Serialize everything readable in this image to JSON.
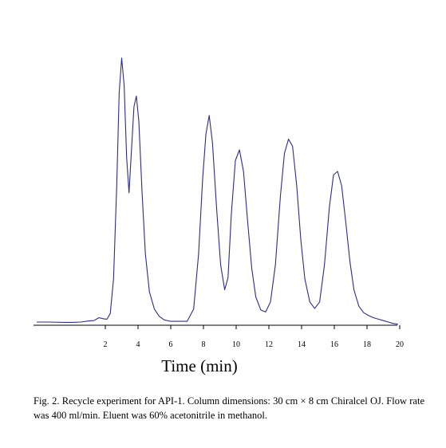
{
  "chart_data": {
    "type": "line",
    "xlabel": "Time (min)",
    "ylabel": "",
    "xlim": [
      -2.2,
      20.4
    ],
    "x_ticks": [
      2,
      4,
      6,
      8,
      10,
      12,
      14,
      16,
      18,
      20
    ],
    "y_ticks_shown": false,
    "grid": false,
    "series": [
      {
        "x": [
          -2.2,
          -1.5,
          -0.5,
          0.0,
          0.5,
          1.0,
          1.3,
          1.6,
          1.9,
          2.1,
          2.3,
          2.5,
          2.7,
          2.85,
          3.0,
          3.15,
          3.3,
          3.45,
          3.6,
          3.75,
          3.9,
          4.05,
          4.25,
          4.45,
          4.7,
          5.0,
          5.3,
          5.6,
          6.0,
          6.5,
          7.0,
          7.4,
          7.7,
          7.95,
          8.15,
          8.35,
          8.55,
          8.8,
          9.05,
          9.3,
          9.5,
          9.7,
          9.95,
          10.2,
          10.45,
          10.7,
          10.95,
          11.2,
          11.5,
          11.8,
          12.1,
          12.4,
          12.7,
          12.95,
          13.2,
          13.45,
          13.7,
          13.95,
          14.2,
          14.5,
          14.8,
          15.1,
          15.4,
          15.7,
          15.95,
          16.2,
          16.45,
          16.7,
          16.95,
          17.2,
          17.5,
          17.8,
          18.1,
          18.4,
          18.7,
          19.0,
          19.3,
          19.6,
          19.9
        ],
        "y": [
          0.0,
          0.0,
          -0.5,
          -0.5,
          0.0,
          1.5,
          2.0,
          6.0,
          4.5,
          4.0,
          12.0,
          60.0,
          190.0,
          320.0,
          368.0,
          330.0,
          230.0,
          180.0,
          240.0,
          300.0,
          315.0,
          280.0,
          180.0,
          95.0,
          42.0,
          18.0,
          8.0,
          3.0,
          1.0,
          1.0,
          1.0,
          18.0,
          95.0,
          200.0,
          262.0,
          288.0,
          250.0,
          160.0,
          80.0,
          45.0,
          62.0,
          150.0,
          225.0,
          240.0,
          210.0,
          140.0,
          75.0,
          35.0,
          17.0,
          14.0,
          28.0,
          80.0,
          175.0,
          235.0,
          255.0,
          245.0,
          190.0,
          115.0,
          60.0,
          28.0,
          19.0,
          28.0,
          80.0,
          160.0,
          205.0,
          210.0,
          190.0,
          140.0,
          85.0,
          45.0,
          22.0,
          13.0,
          9.0,
          6.0,
          4.0,
          2.0,
          0.0,
          -2.0,
          -3.0
        ]
      }
    ]
  },
  "caption": "Fig. 2. Recycle experiment for API-1. Column dimensions: 30 cm × 8 cm Chiralcel OJ. Flow rate was 400 ml/min. Eluent was 60% acetonitrile in methanol.",
  "colors": {
    "trace": "#2c2c8a",
    "axis": "#000000"
  }
}
